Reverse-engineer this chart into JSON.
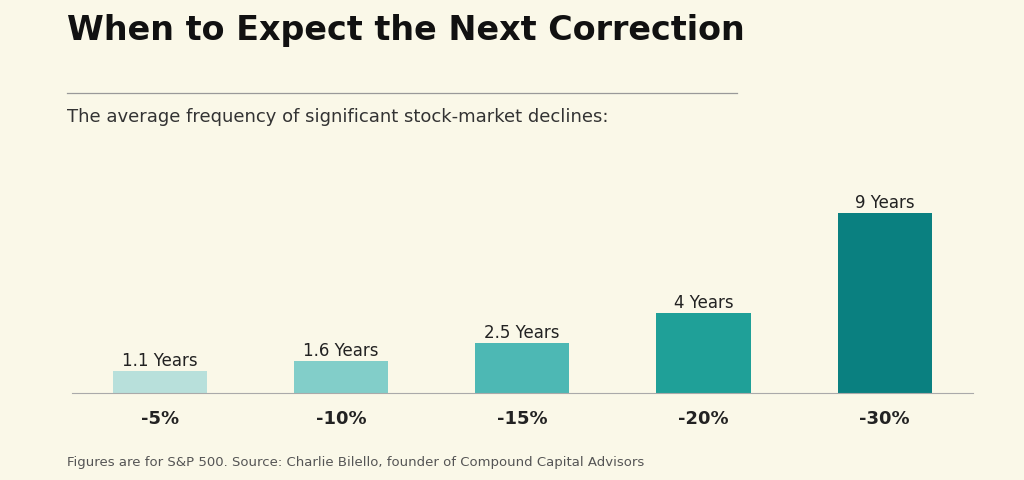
{
  "title": "When to Expect the Next Correction",
  "subtitle": "The average frequency of significant stock-market declines:",
  "footnote": "Figures are for S&P 500. Source: Charlie Bilello, founder of Compound Capital Advisors",
  "categories": [
    "-5%",
    "-10%",
    "-15%",
    "-20%",
    "-30%"
  ],
  "values": [
    1.1,
    1.6,
    2.5,
    4.0,
    9.0
  ],
  "labels": [
    "1.1 Years",
    "1.6 Years",
    "2.5 Years",
    "4 Years",
    "9 Years"
  ],
  "bar_colors": [
    "#b8e0db",
    "#82cec9",
    "#4db8b4",
    "#1fa098",
    "#0a8080"
  ],
  "background_color": "#faf8e8",
  "title_color": "#111111",
  "subtitle_color": "#333333",
  "label_color": "#222222",
  "tick_color": "#222222",
  "footnote_color": "#555555",
  "ylim": [
    0,
    10.8
  ],
  "bar_width": 0.52,
  "title_fontsize": 24,
  "subtitle_fontsize": 13,
  "label_fontsize": 12,
  "tick_fontsize": 13,
  "footnote_fontsize": 9.5
}
